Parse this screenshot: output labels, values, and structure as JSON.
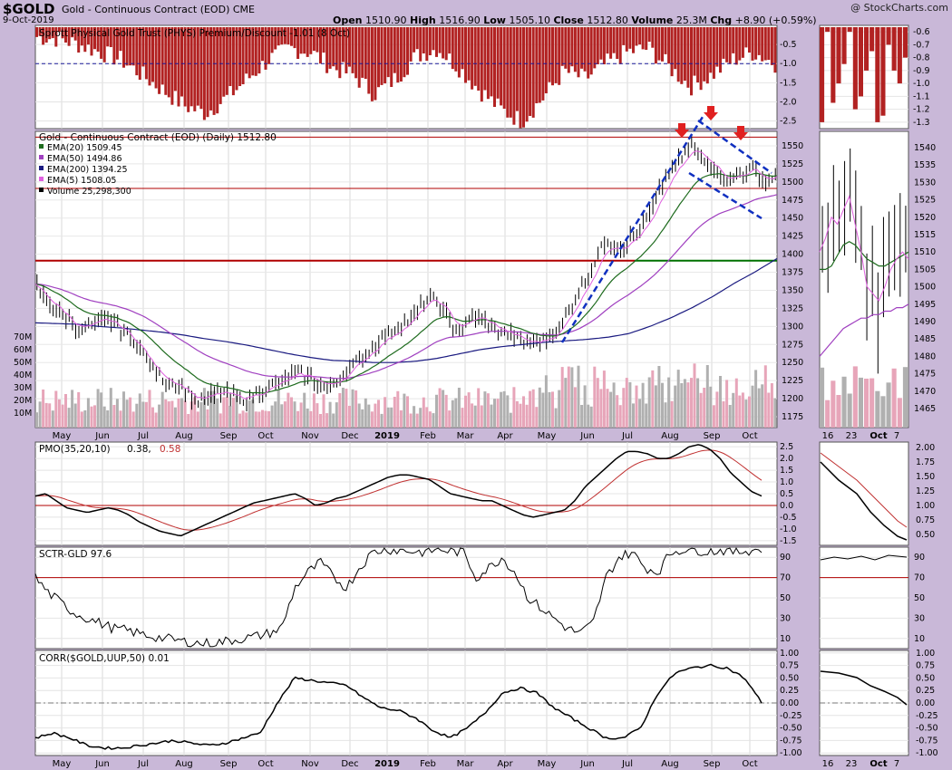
{
  "header": {
    "symbol": "$GOLD",
    "description": "Gold - Continuous Contract (EOD)",
    "exchange": "CME",
    "date": "9-Oct-2019",
    "open_label": "Open",
    "open": "1510.90",
    "high_label": "High",
    "high": "1516.90",
    "low_label": "Low",
    "low": "1505.10",
    "close_label": "Close",
    "close": "1512.80",
    "volume_label": "Volume",
    "volume": "25.3M",
    "chg_label": "Chg",
    "chg": "+8.90 (+0.59%)",
    "watermark": "@ StockCharts.com"
  },
  "colors": {
    "background": "#c9b8d8",
    "panel": "#ffffff",
    "phys_bars": "#b22222",
    "ema20": "#1e6b1e",
    "ema50": "#a040c0",
    "ema200": "#1a1a80",
    "ema5": "#e060e0",
    "support": "#b00000",
    "support_green": "#007000",
    "channel": "#1030c0",
    "arrow": "#e02020",
    "volume_up": "#b0b0b0",
    "volume_down": "#e7a5b9"
  },
  "chart_data": [
    {
      "type": "bar",
      "title": "Sprott Physical Gold Trust (PHYS) Premium/Discount -1.01 (8 Oct)",
      "yticks": [
        "-0.5",
        "-1.0",
        "-1.5",
        "-2.0",
        "-2.5"
      ],
      "ylim": [
        -2.7,
        0
      ],
      "reference_line": -1.0,
      "approx_values": [
        -0.3,
        -0.35,
        -0.5,
        -0.7,
        -0.9,
        -1.3,
        -1.7,
        -2.1,
        -2.3,
        -1.9,
        -1.4,
        -0.9,
        -0.6,
        -0.7,
        -1.1,
        -1.3,
        -1.8,
        -1.4,
        -0.8,
        -0.6,
        -1.1,
        -1.7,
        -2.2,
        -2.5,
        -1.9,
        -1.2,
        -1.4,
        -1.0,
        -0.7,
        -0.6,
        -1.1,
        -1.6,
        -1.3,
        -0.9,
        -0.7,
        -1.0
      ],
      "zoom_yticks": [
        "-0.6",
        "-0.7",
        "-0.8",
        "-0.9",
        "-1.0",
        "-1.1",
        "-1.2",
        "-1.3"
      ]
    },
    {
      "type": "line",
      "title": "Gold - Continuous Contract (EOD) (Daily) 1512.80",
      "legend": [
        {
          "name": "EMA(20) 1509.45",
          "color": "#1e6b1e"
        },
        {
          "name": "EMA(50) 1494.86",
          "color": "#a040c0"
        },
        {
          "name": "EMA(200) 1394.25",
          "color": "#1a1a80"
        },
        {
          "name": "EMA(5) 1508.05",
          "color": "#e060e0"
        },
        {
          "name": "Volume 25,298,300",
          "color": "#000000"
        }
      ],
      "price_ticks": [
        "1550",
        "1525",
        "1500",
        "1475",
        "1450",
        "1425",
        "1400",
        "1375",
        "1350",
        "1325",
        "1300",
        "1275",
        "1250",
        "1225",
        "1200",
        "1175"
      ],
      "volume_ticks": [
        "70M",
        "60M",
        "50M",
        "40M",
        "30M",
        "20M",
        "10M"
      ],
      "zoom_ticks": [
        "1540",
        "1535",
        "1530",
        "1525",
        "1520",
        "1515",
        "1510",
        "1505",
        "1500",
        "1495",
        "1490",
        "1485",
        "1480",
        "1475",
        "1470",
        "1465"
      ],
      "ylim": [
        1160,
        1570
      ],
      "support_lines": [
        1562,
        1491,
        1391
      ],
      "close_series": [
        1355,
        1340,
        1330,
        1320,
        1310,
        1300,
        1295,
        1300,
        1305,
        1310,
        1305,
        1295,
        1285,
        1275,
        1260,
        1240,
        1230,
        1225,
        1220,
        1215,
        1205,
        1195,
        1200,
        1205,
        1210,
        1205,
        1200,
        1200,
        1205,
        1210,
        1215,
        1220,
        1225,
        1230,
        1235,
        1230,
        1228,
        1220,
        1215,
        1225,
        1235,
        1245,
        1255,
        1265,
        1275,
        1285,
        1290,
        1300,
        1305,
        1315,
        1330,
        1340,
        1335,
        1320,
        1300,
        1295,
        1305,
        1315,
        1310,
        1300,
        1295,
        1290,
        1285,
        1280,
        1275,
        1278,
        1282,
        1290,
        1300,
        1320,
        1340,
        1360,
        1380,
        1400,
        1420,
        1415,
        1410,
        1420,
        1430,
        1445,
        1460,
        1490,
        1510,
        1525,
        1535,
        1550,
        1540,
        1530,
        1520,
        1505,
        1500,
        1510,
        1515,
        1520,
        1505,
        1500,
        1512
      ],
      "ema200": [
        1305,
        1304,
        1303,
        1300,
        1298,
        1295,
        1292,
        1288,
        1283,
        1279,
        1274,
        1268,
        1262,
        1257,
        1253,
        1252,
        1250,
        1250,
        1252,
        1256,
        1262,
        1268,
        1272,
        1275,
        1278,
        1280,
        1282,
        1285,
        1290,
        1300,
        1312,
        1326,
        1342,
        1360,
        1376,
        1394
      ],
      "zoom_axis": [
        "16",
        "23",
        "Oct",
        "7"
      ]
    },
    {
      "type": "line",
      "title": "PMO(35,20,10) 0.38, 0.58",
      "values_label_a": "0.38",
      "values_label_b": "0.58",
      "yticks": [
        "2.5",
        "2.0",
        "1.5",
        "1.0",
        "0.5",
        "0.0",
        "-0.5",
        "-1.0",
        "-1.5"
      ],
      "ylim": [
        -1.7,
        2.7
      ],
      "pmo": [
        0.4,
        0.5,
        0.2,
        -0.1,
        -0.2,
        -0.3,
        -0.2,
        -0.1,
        -0.2,
        -0.4,
        -0.7,
        -0.9,
        -1.1,
        -1.2,
        -1.3,
        -1.1,
        -0.9,
        -0.7,
        -0.5,
        -0.3,
        -0.1,
        0.1,
        0.2,
        0.3,
        0.4,
        0.5,
        0.3,
        0.0,
        0.1,
        0.3,
        0.4,
        0.6,
        0.8,
        1.0,
        1.2,
        1.3,
        1.3,
        1.2,
        1.1,
        0.8,
        0.5,
        0.4,
        0.3,
        0.2,
        0.2,
        0.0,
        -0.2,
        -0.4,
        -0.5,
        -0.4,
        -0.3,
        -0.2,
        0.2,
        0.8,
        1.2,
        1.6,
        2.0,
        2.3,
        2.3,
        2.2,
        2.0,
        2.0,
        2.2,
        2.5,
        2.6,
        2.4,
        2.0,
        1.4,
        1.0,
        0.6,
        0.4
      ],
      "zoom_yticks": [
        "2.00",
        "1.75",
        "1.50",
        "1.25",
        "1.00",
        "0.75",
        "0.50"
      ]
    },
    {
      "type": "line",
      "title": "SCTR-GLD 97.6",
      "yticks": [
        "90",
        "70",
        "50",
        "30",
        "10"
      ],
      "ylim": [
        0,
        100
      ],
      "reference_line": 70,
      "sctr": [
        70,
        55,
        45,
        35,
        30,
        25,
        20,
        18,
        15,
        12,
        10,
        8,
        6,
        5,
        6,
        8,
        10,
        12,
        15,
        20,
        60,
        75,
        85,
        70,
        60,
        80,
        95,
        98,
        97,
        96,
        95,
        98,
        96,
        95,
        70,
        80,
        90,
        75,
        50,
        40,
        30,
        20,
        15,
        25,
        70,
        90,
        95,
        80,
        75,
        95,
        98,
        97,
        96,
        97,
        95,
        97,
        98
      ]
    },
    {
      "type": "line",
      "title": "CORR($GOLD,UUP,50) 0.01",
      "yticks": [
        "1.00",
        "0.75",
        "0.50",
        "0.25",
        "0.00",
        "-0.25",
        "-0.50",
        "-0.75",
        "-1.00"
      ],
      "ylim": [
        -1.05,
        1.05
      ],
      "reference_line": 0,
      "corr": [
        -0.7,
        -0.6,
        -0.7,
        -0.85,
        -0.9,
        -0.9,
        -0.85,
        -0.8,
        -0.75,
        -0.8,
        -0.85,
        -0.8,
        -0.7,
        -0.6,
        0.0,
        0.5,
        0.45,
        0.4,
        0.35,
        0.1,
        -0.1,
        -0.15,
        -0.3,
        -0.55,
        -0.7,
        -0.5,
        -0.2,
        0.2,
        0.3,
        0.2,
        -0.1,
        -0.3,
        -0.5,
        -0.7,
        -0.7,
        -0.5,
        0.2,
        0.6,
        0.7,
        0.75,
        0.7,
        0.5,
        0.01
      ],
      "zoom_yticks": [
        "1.00",
        "0.75",
        "0.50",
        "0.25",
        "0.00",
        "-0.25",
        "-0.50",
        "-0.75",
        "-1.00"
      ]
    }
  ],
  "x_axis": {
    "months": [
      "May",
      "Jun",
      "Jul",
      "Aug",
      "Sep",
      "Oct",
      "Nov",
      "Dec",
      "2019",
      "Feb",
      "Mar",
      "Apr",
      "May",
      "Jun",
      "Jul",
      "Aug",
      "Sep",
      "Oct"
    ],
    "zoom": [
      "16",
      "23",
      "Oct",
      "7"
    ]
  }
}
